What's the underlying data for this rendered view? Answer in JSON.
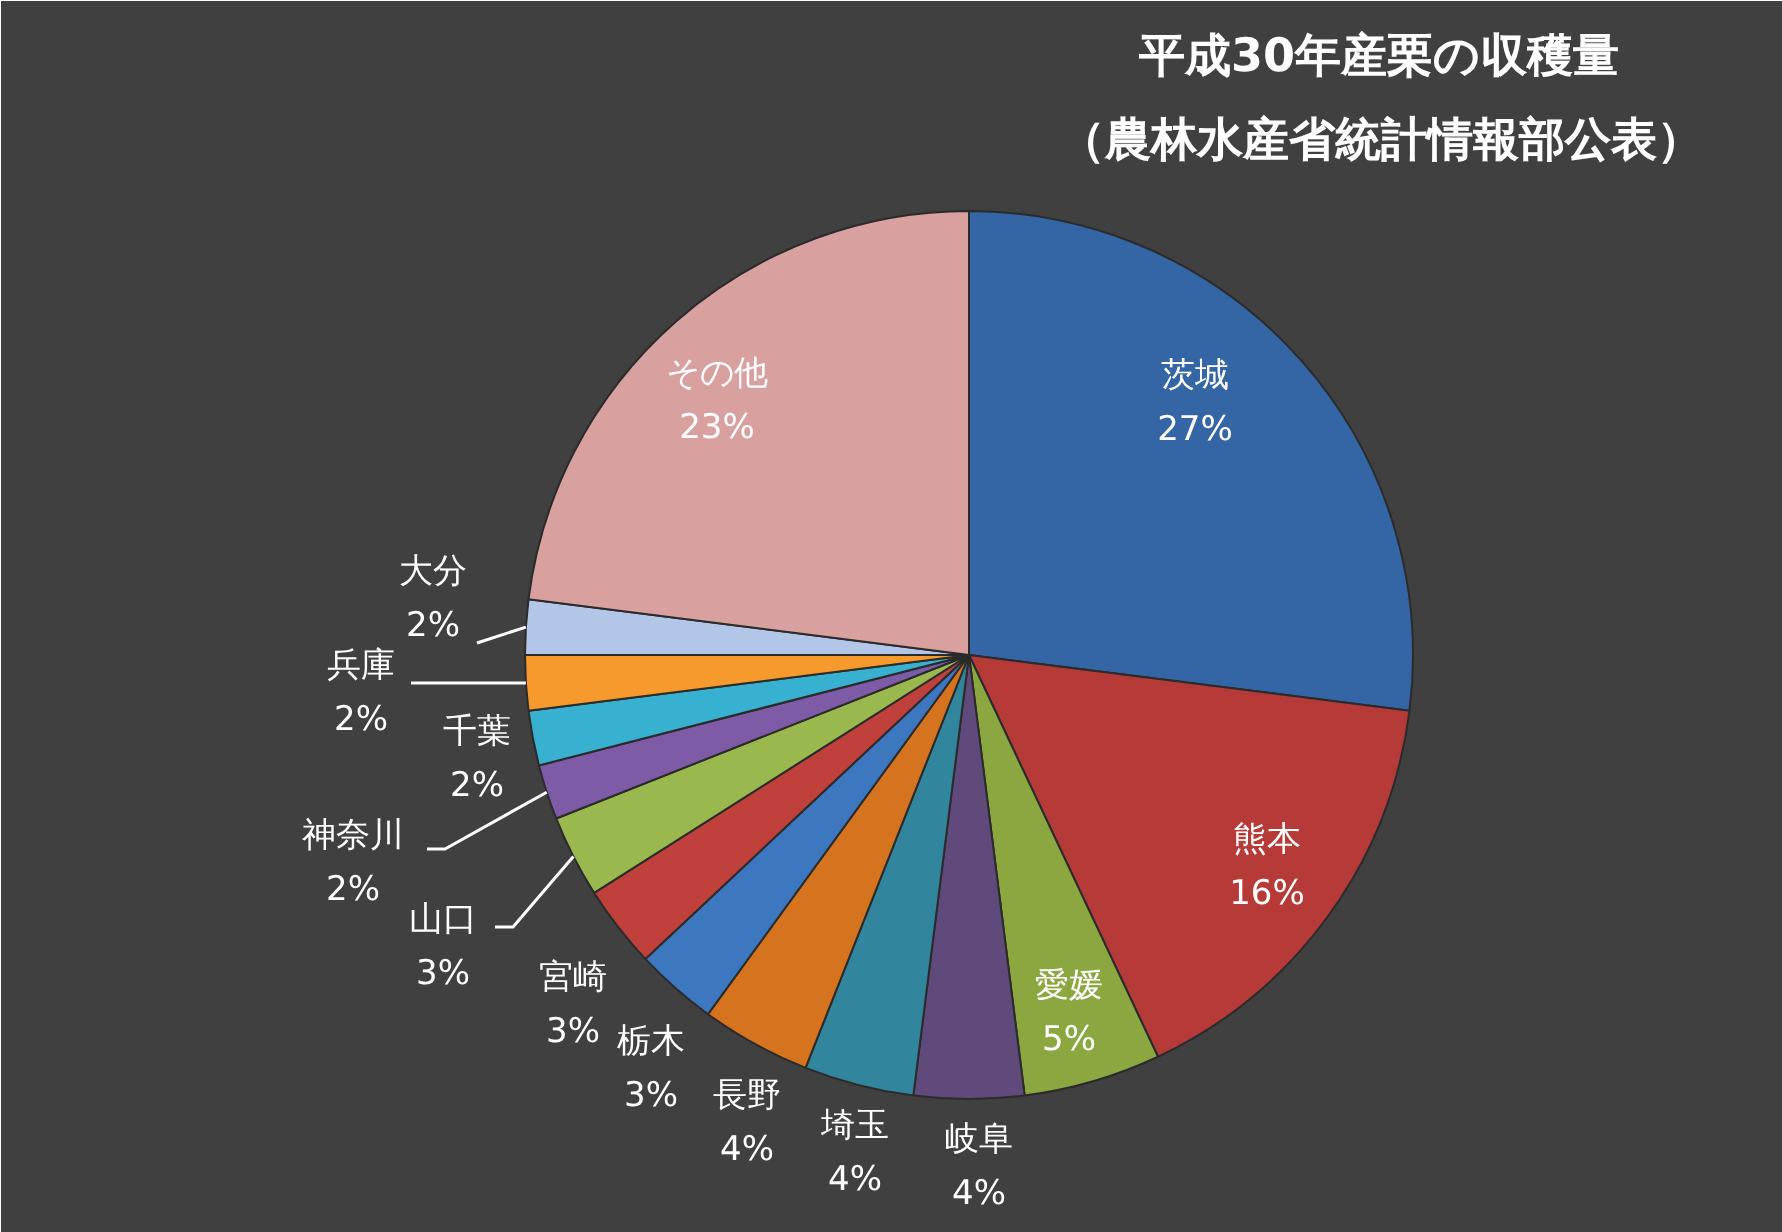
{
  "chart_data": {
    "type": "pie",
    "title": "平成30年産栗の収穫量",
    "subtitle": "（農林水産省統計情報部公表）",
    "categories": [
      "茨城",
      "熊本",
      "愛媛",
      "岐阜",
      "埼玉",
      "長野",
      "栃木",
      "宮崎",
      "山口",
      "神奈川",
      "千葉",
      "兵庫",
      "大分",
      "その他"
    ],
    "values": [
      27,
      16,
      5,
      4,
      4,
      4,
      3,
      3,
      3,
      2,
      2,
      2,
      2,
      23
    ],
    "colors": [
      "#3465a4",
      "#b63a37",
      "#8aa83f",
      "#604a7b",
      "#31859c",
      "#d5731e",
      "#3d77bf",
      "#c0403c",
      "#99b94f",
      "#7e5ba6",
      "#38b0cf",
      "#f79a2e",
      "#b3c6e7",
      "#d9a0a0"
    ],
    "value_labels": [
      "27%",
      "16%",
      "5%",
      "4%",
      "4%",
      "4%",
      "3%",
      "3%",
      "3%",
      "2%",
      "2%",
      "2%",
      "2%",
      "23%"
    ]
  }
}
